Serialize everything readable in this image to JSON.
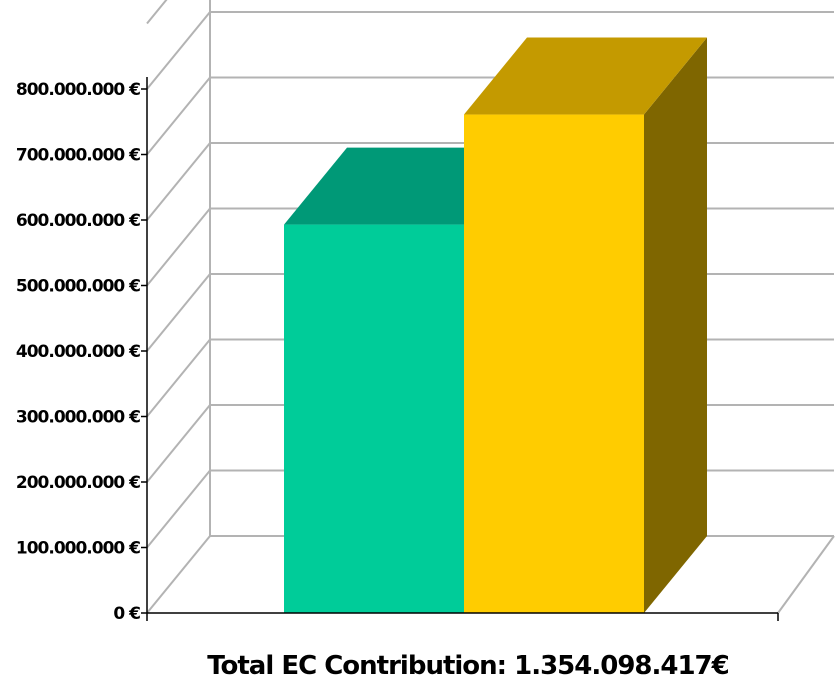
{
  "chart_data": {
    "type": "bar",
    "bars": [
      {
        "value": 593000000,
        "color": "#00cc99",
        "top_color": "#009977",
        "side_color": "#008866"
      },
      {
        "value": 761000000,
        "color": "#ffcc00",
        "top_color": "#c49a00",
        "side_color": "#7f6600"
      }
    ],
    "ylim": [
      0,
      800000000
    ],
    "yticks": [
      0,
      100000000,
      200000000,
      300000000,
      400000000,
      500000000,
      600000000,
      700000000,
      800000000
    ],
    "ytick_labels": [
      "0 €",
      "100.000.000 €",
      "200.000.000 €",
      "300.000.000 €",
      "400.000.000 €",
      "500.000.000 €",
      "600.000.000 €",
      "700.000.000 €",
      "800.000.000 €"
    ],
    "xlabel": "Total EC Contribution: 1.354.098.417€",
    "grid": true,
    "three_d": true
  },
  "colors": {
    "grid": "#b3b3b3",
    "axis": "#000000"
  }
}
